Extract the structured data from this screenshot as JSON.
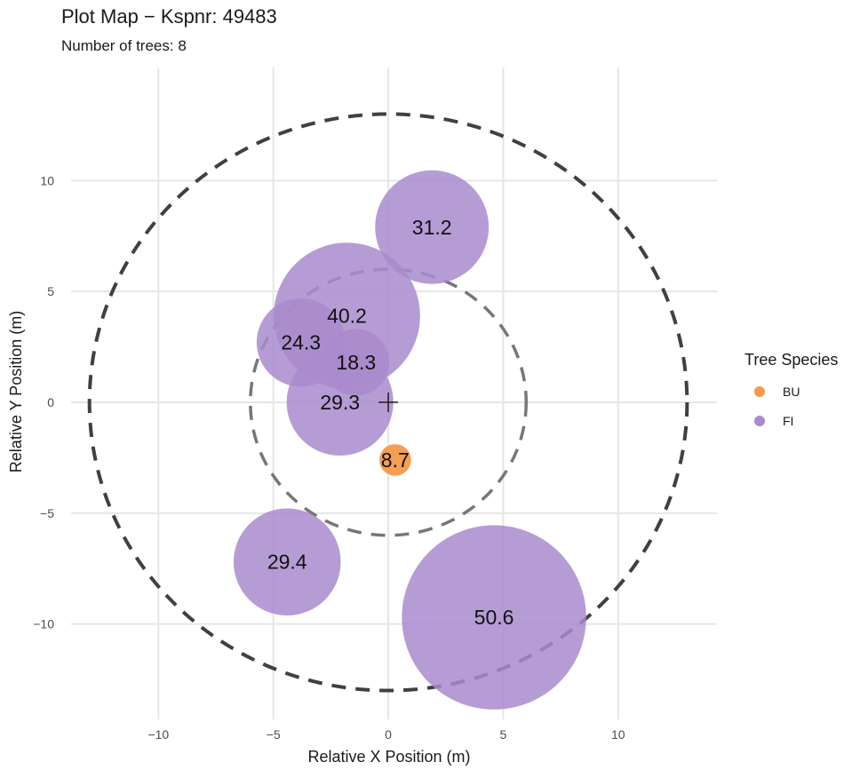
{
  "chart_data": {
    "type": "scatter",
    "title": "Plot Map − Kspnr: 49483",
    "subtitle": "Number of trees: 8",
    "xlabel": "Relative X Position (m)",
    "ylabel": "Relative Y Position (m)",
    "xlim": [
      -13.8,
      14.3
    ],
    "ylim": [
      -14.3,
      15.1
    ],
    "x_ticks": [
      -10,
      -5,
      0,
      5,
      10
    ],
    "y_ticks": [
      -10,
      -5,
      0,
      5,
      10
    ],
    "x_tick_labels": [
      "−10",
      "−5",
      "0",
      "5",
      "10"
    ],
    "y_tick_labels": [
      "−10",
      "−5",
      "0",
      "5",
      "10"
    ],
    "grid": true,
    "legend": {
      "title": "Tree Species",
      "placement": "right",
      "entries": [
        {
          "label": "BU",
          "color": "#f59a4a"
        },
        {
          "label": "FI",
          "color": "#a98bcd"
        }
      ]
    },
    "plot_circles": [
      {
        "radius": 13,
        "color": "#404040"
      },
      {
        "radius": 6,
        "color": "#777777"
      }
    ],
    "center_marker": {
      "x": 0,
      "y": 0,
      "symbol": "plus"
    },
    "points": [
      {
        "species": "FI",
        "label": "31.2",
        "x": 1.9,
        "y": 7.9,
        "dbh": 31.2
      },
      {
        "species": "FI",
        "label": "40.2",
        "x": -1.8,
        "y": 3.9,
        "dbh": 40.2
      },
      {
        "species": "FI",
        "label": "24.3",
        "x": -3.8,
        "y": 2.7,
        "dbh": 24.3
      },
      {
        "species": "FI",
        "label": "18.3",
        "x": -1.4,
        "y": 1.8,
        "dbh": 18.3
      },
      {
        "species": "FI",
        "label": "29.3",
        "x": -2.1,
        "y": 0.0,
        "dbh": 29.3
      },
      {
        "species": "BU",
        "label": "8.7",
        "x": 0.3,
        "y": -2.6,
        "dbh": 8.7
      },
      {
        "species": "FI",
        "label": "29.4",
        "x": -4.4,
        "y": -7.2,
        "dbh": 29.4
      },
      {
        "species": "FI",
        "label": "50.6",
        "x": 4.6,
        "y": -9.7,
        "dbh": 50.6
      }
    ]
  }
}
